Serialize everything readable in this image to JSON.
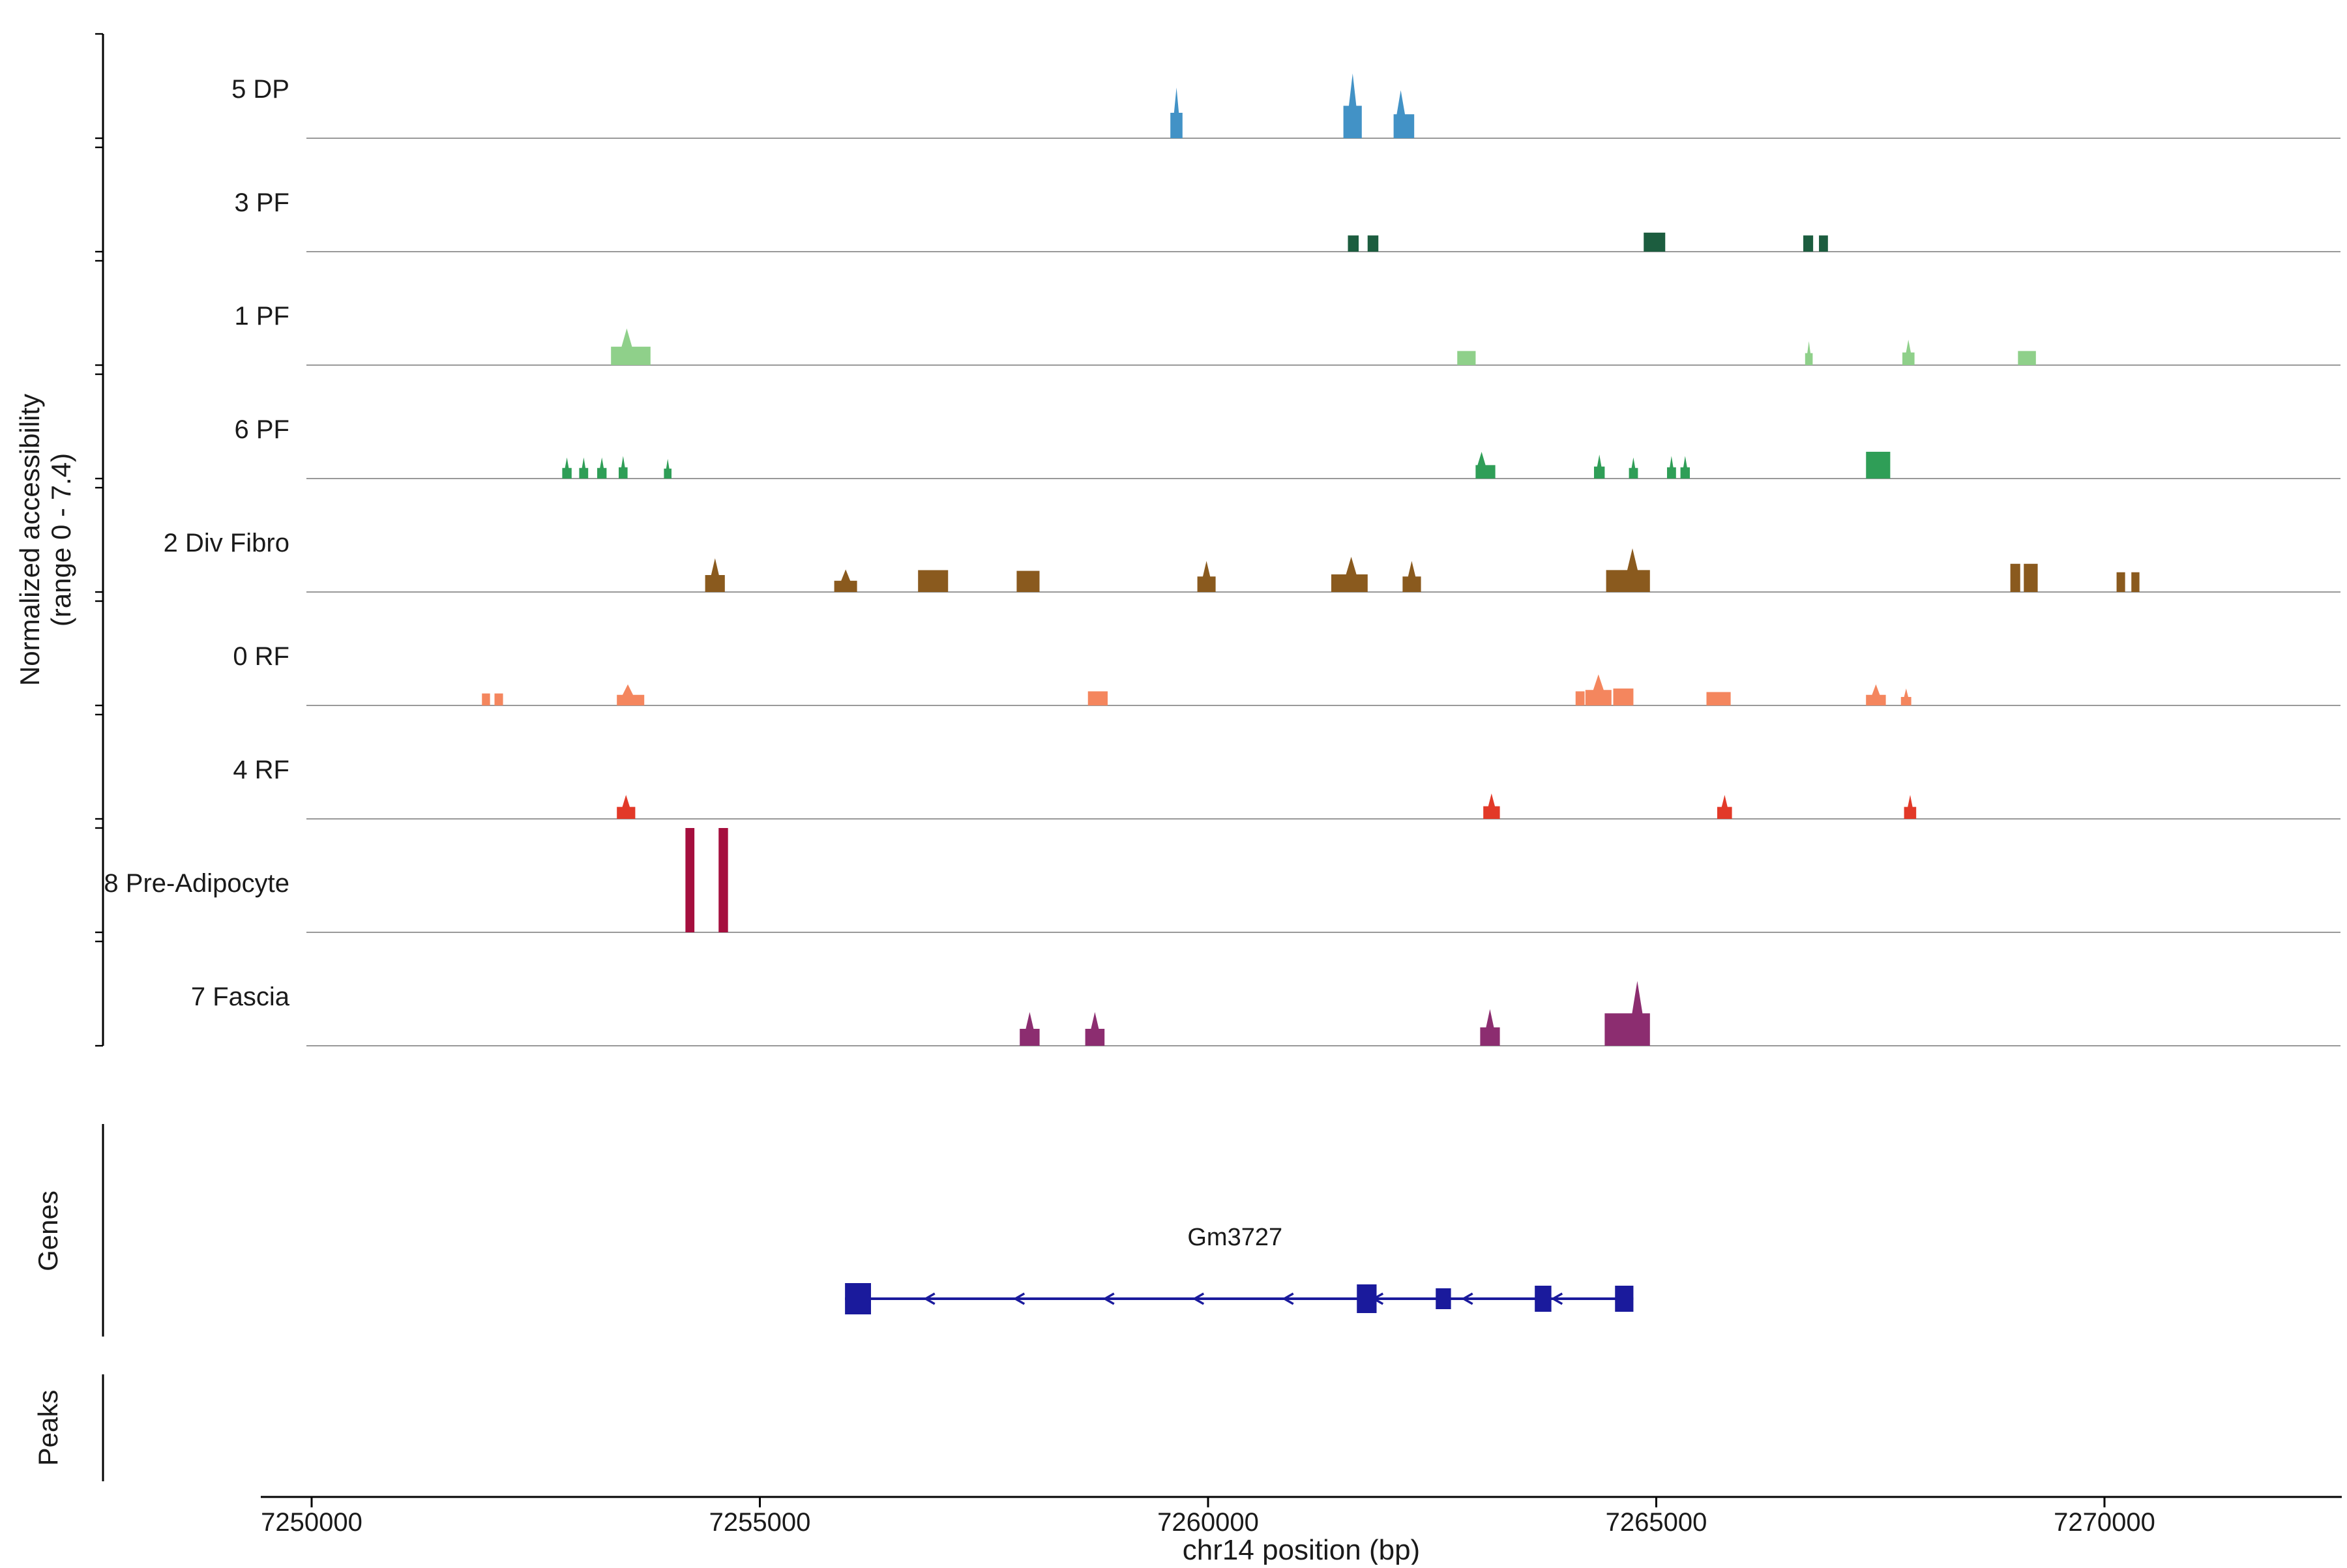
{
  "figure": {
    "ylabel_line1": "Normalized accessibility",
    "ylabel_line2": "(range 0 - 7.4)",
    "genes_section_label": "Genes",
    "peaks_section_label": "Peaks"
  },
  "chart_data": {
    "type": "area",
    "title": "",
    "xlabel": "chr14 position (bp)",
    "ylabel": "Normalized accessibility (range 0 - 7.4)",
    "x_range": [
      7249900,
      7272650
    ],
    "y_range_per_track": [
      0,
      7.4
    ],
    "grid": false,
    "legend": false,
    "xticks": [
      7250000,
      7255000,
      7260000,
      7265000,
      7270000
    ],
    "xtick_labels": [
      "7250000",
      "7255000",
      "7260000",
      "7265000",
      "7270000"
    ],
    "sections": [
      "Normalized accessibility",
      "Genes",
      "Peaks"
    ],
    "tracks": [
      {
        "label": "5 DP",
        "color": "#4292c6",
        "peaks": [
          {
            "s": 7259580,
            "e": 7259715,
            "h": 3.6,
            "t": "spike"
          },
          {
            "s": 7261510,
            "e": 7261715,
            "h": 4.6,
            "t": "spike"
          },
          {
            "s": 7262070,
            "e": 7262300,
            "h": 3.4,
            "t": "spike",
            "p": 0.35
          }
        ]
      },
      {
        "label": "3 PF",
        "color": "#1c5d3f",
        "peaks": [
          {
            "s": 7261560,
            "e": 7261680,
            "h": 1.15,
            "t": "block"
          },
          {
            "s": 7261780,
            "e": 7261900,
            "h": 1.15,
            "t": "block"
          },
          {
            "s": 7264860,
            "e": 7265100,
            "h": 1.35,
            "t": "block"
          },
          {
            "s": 7266640,
            "e": 7266750,
            "h": 1.15,
            "t": "block"
          },
          {
            "s": 7266815,
            "e": 7266915,
            "h": 1.15,
            "t": "block"
          }
        ]
      },
      {
        "label": "1 PF",
        "color": "#8fd08a",
        "peaks": [
          {
            "s": 7253340,
            "e": 7253780,
            "h": 2.6,
            "t": "spike",
            "p": 0.4
          },
          {
            "s": 7262780,
            "e": 7262985,
            "h": 1.0,
            "t": "block"
          },
          {
            "s": 7266660,
            "e": 7266745,
            "h": 1.7,
            "t": "spike"
          },
          {
            "s": 7267745,
            "e": 7267880,
            "h": 1.8,
            "t": "spike"
          },
          {
            "s": 7269035,
            "e": 7269235,
            "h": 1.0,
            "t": "block"
          }
        ]
      },
      {
        "label": "6 PF",
        "color": "#2f9e57",
        "peaks": [
          {
            "s": 7252795,
            "e": 7252900,
            "h": 1.5,
            "t": "spike"
          },
          {
            "s": 7252985,
            "e": 7253085,
            "h": 1.5,
            "t": "spike"
          },
          {
            "s": 7253185,
            "e": 7253290,
            "h": 1.5,
            "t": "spike"
          },
          {
            "s": 7253425,
            "e": 7253525,
            "h": 1.6,
            "t": "spike"
          },
          {
            "s": 7253930,
            "e": 7254015,
            "h": 1.4,
            "t": "spike"
          },
          {
            "s": 7262985,
            "e": 7263205,
            "h": 1.9,
            "t": "spike",
            "p": 0.3
          },
          {
            "s": 7264305,
            "e": 7264425,
            "h": 1.7,
            "t": "spike"
          },
          {
            "s": 7264695,
            "e": 7264795,
            "h": 1.5,
            "t": "spike"
          },
          {
            "s": 7265120,
            "e": 7265220,
            "h": 1.6,
            "t": "spike"
          },
          {
            "s": 7265270,
            "e": 7265375,
            "h": 1.6,
            "t": "spike"
          },
          {
            "s": 7267340,
            "e": 7267610,
            "h": 1.9,
            "t": "block"
          }
        ]
      },
      {
        "label": "2 Div Fibro",
        "color": "#8a5a1e",
        "peaks": [
          {
            "s": 7254390,
            "e": 7254610,
            "h": 2.4,
            "t": "spike"
          },
          {
            "s": 7255830,
            "e": 7256085,
            "h": 1.6,
            "t": "spike"
          },
          {
            "s": 7256765,
            "e": 7257100,
            "h": 1.55,
            "t": "block"
          },
          {
            "s": 7257865,
            "e": 7258120,
            "h": 1.5,
            "t": "block"
          },
          {
            "s": 7259880,
            "e": 7260085,
            "h": 2.2,
            "t": "spike"
          },
          {
            "s": 7261375,
            "e": 7261780,
            "h": 2.5,
            "t": "spike",
            "p": 0.55
          },
          {
            "s": 7262170,
            "e": 7262375,
            "h": 2.2,
            "t": "spike"
          },
          {
            "s": 7264440,
            "e": 7264930,
            "h": 3.1,
            "t": "spike",
            "p": 0.6
          },
          {
            "s": 7268950,
            "e": 7269060,
            "h": 2.0,
            "t": "block"
          },
          {
            "s": 7269100,
            "e": 7269255,
            "h": 2.0,
            "t": "block"
          },
          {
            "s": 7270135,
            "e": 7270230,
            "h": 1.4,
            "t": "block"
          },
          {
            "s": 7270300,
            "e": 7270390,
            "h": 1.4,
            "t": "block"
          }
        ]
      },
      {
        "label": "0 RF",
        "color": "#f4865e",
        "peaks": [
          {
            "s": 7251900,
            "e": 7251990,
            "h": 0.85,
            "t": "block"
          },
          {
            "s": 7252040,
            "e": 7252135,
            "h": 0.85,
            "t": "block"
          },
          {
            "s": 7253405,
            "e": 7253710,
            "h": 1.5,
            "t": "spike",
            "p": 0.4
          },
          {
            "s": 7258660,
            "e": 7258880,
            "h": 1.0,
            "t": "block"
          },
          {
            "s": 7264100,
            "e": 7264200,
            "h": 1.0,
            "t": "block"
          },
          {
            "s": 7264210,
            "e": 7264500,
            "h": 2.2,
            "t": "spike"
          },
          {
            "s": 7264520,
            "e": 7264745,
            "h": 1.2,
            "t": "block"
          },
          {
            "s": 7265560,
            "e": 7265830,
            "h": 0.95,
            "t": "block"
          },
          {
            "s": 7267340,
            "e": 7267560,
            "h": 1.5,
            "t": "spike"
          },
          {
            "s": 7267730,
            "e": 7267845,
            "h": 1.2,
            "t": "spike"
          }
        ]
      },
      {
        "label": "4 RF",
        "color": "#e23928",
        "peaks": [
          {
            "s": 7253405,
            "e": 7253610,
            "h": 1.7,
            "t": "spike"
          },
          {
            "s": 7263070,
            "e": 7263255,
            "h": 1.8,
            "t": "spike"
          },
          {
            "s": 7265680,
            "e": 7265845,
            "h": 1.7,
            "t": "spike"
          },
          {
            "s": 7267765,
            "e": 7267900,
            "h": 1.7,
            "t": "spike"
          }
        ]
      },
      {
        "label": "8 Pre-Adipocyte",
        "color": "#a50f3e",
        "peaks": [
          {
            "s": 7254170,
            "e": 7254270,
            "h": 7.4,
            "t": "block"
          },
          {
            "s": 7254540,
            "e": 7254645,
            "h": 7.4,
            "t": "block"
          }
        ]
      },
      {
        "label": "7 Fascia",
        "color": "#8c2d70",
        "peaks": [
          {
            "s": 7257900,
            "e": 7258120,
            "h": 2.4,
            "t": "spike"
          },
          {
            "s": 7258630,
            "e": 7258845,
            "h": 2.4,
            "t": "spike"
          },
          {
            "s": 7263035,
            "e": 7263255,
            "h": 2.6,
            "t": "spike"
          },
          {
            "s": 7264425,
            "e": 7264930,
            "h": 4.6,
            "t": "spike",
            "p": 0.72
          }
        ]
      }
    ],
    "genes": [
      {
        "name": "Gm3727",
        "start": 7255950,
        "end": 7264745,
        "strand": "-",
        "color": "#1a1a9c",
        "label_x": 7260300,
        "exons": [
          {
            "s": 7255950,
            "e": 7256240,
            "h": 24
          },
          {
            "s": 7261660,
            "e": 7261880,
            "h": 22
          },
          {
            "s": 7262540,
            "e": 7262710,
            "h": 16
          },
          {
            "s": 7263645,
            "e": 7263830,
            "h": 20
          },
          {
            "s": 7264540,
            "e": 7264745,
            "h": 20
          }
        ]
      }
    ],
    "peaks_track": []
  }
}
